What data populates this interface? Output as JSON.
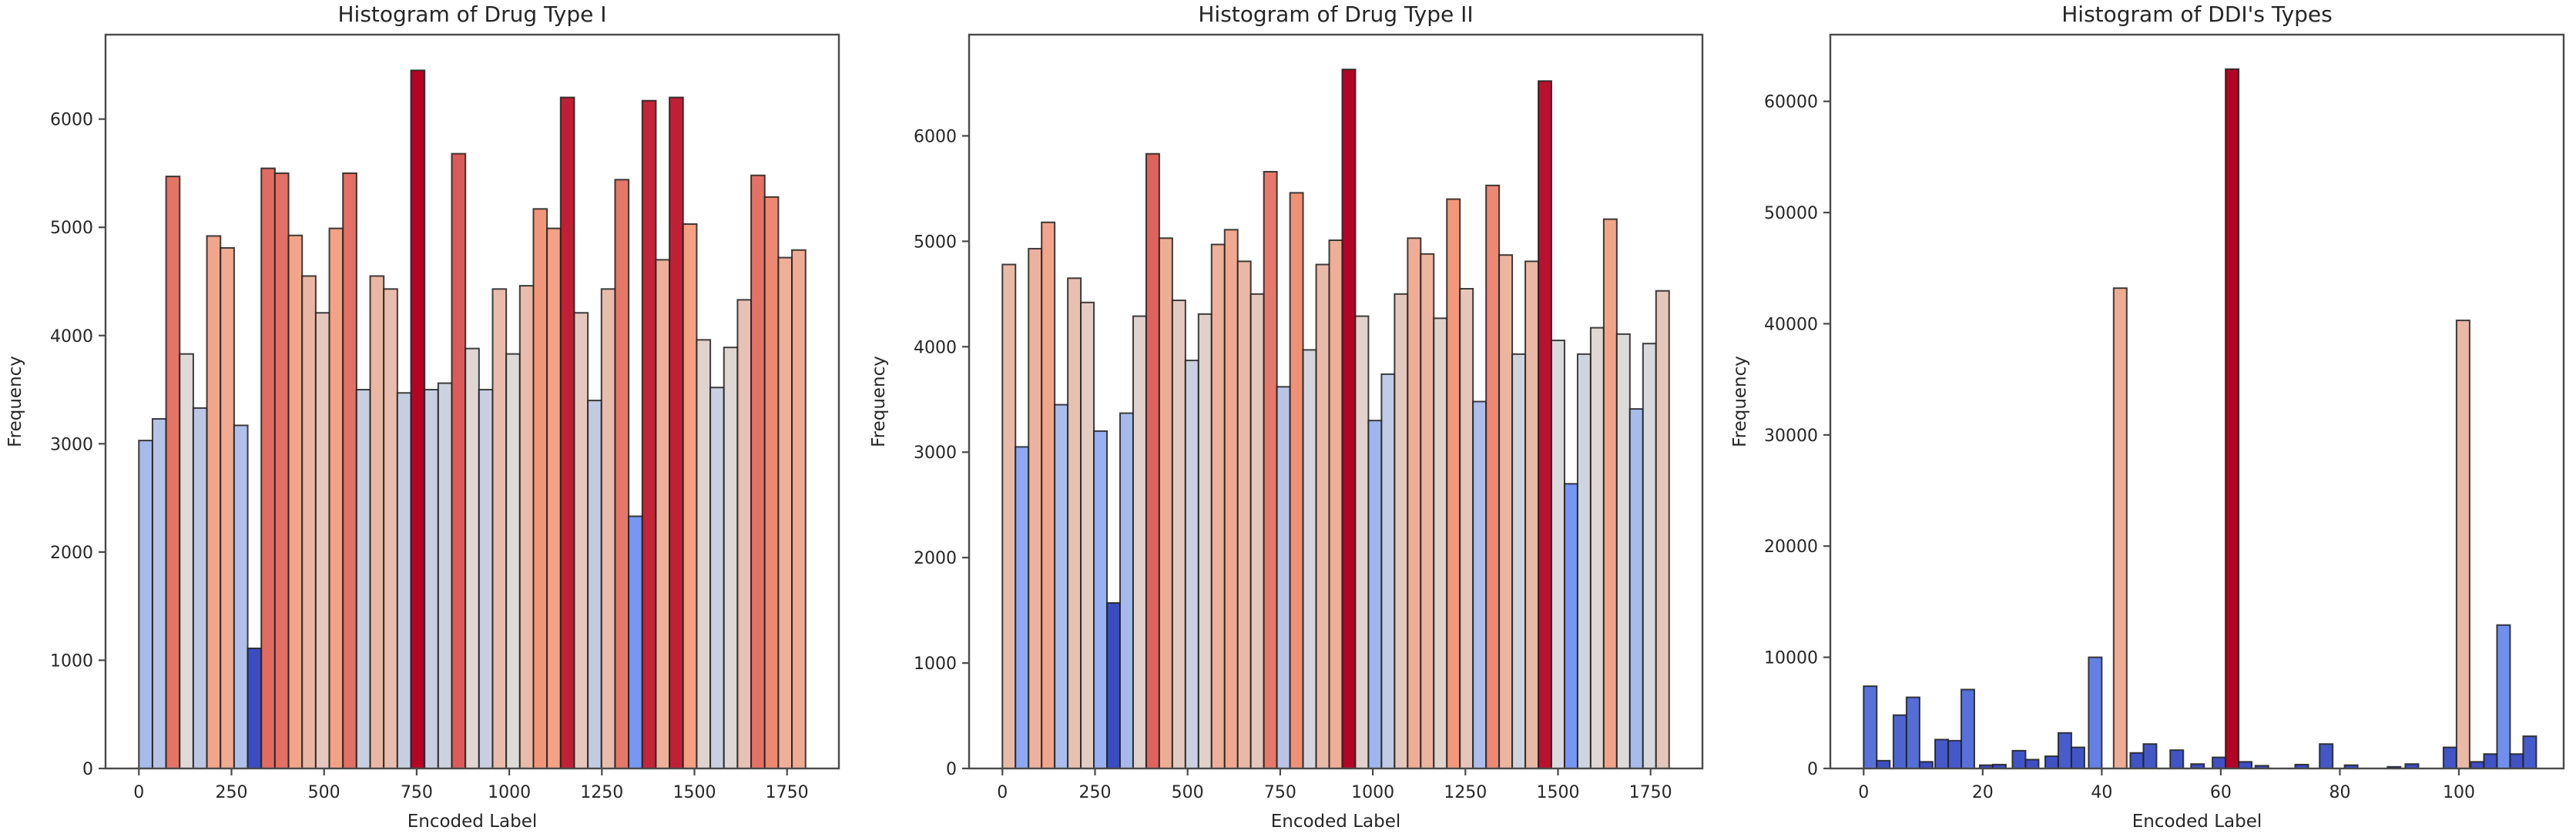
{
  "page": {
    "background": "#ffffff",
    "description": "Three side-by-side matplotlib-style histograms colored with a coolwarm colormap"
  },
  "colormap": {
    "name": "coolwarm",
    "stops": [
      [
        0.0,
        "#3B4CC0"
      ],
      [
        0.25,
        "#7C9FF9"
      ],
      [
        0.5,
        "#DDDCDB"
      ],
      [
        0.75,
        "#F59C7D"
      ],
      [
        1.0,
        "#B40426"
      ]
    ]
  },
  "style": {
    "bar_edge_color": "#1f1f1f",
    "spine_color": "#4a4a4a",
    "text_color": "#262626",
    "plot_background": "#ffffff"
  },
  "chart_data": [
    {
      "type": "bar",
      "subtype": "histogram",
      "title": "Histogram of Drug Type I",
      "xlabel": "Encoded Label",
      "ylabel": "Frequency",
      "xlim": [
        -90,
        1890
      ],
      "ylim": [
        0,
        6780
      ],
      "xticks": [
        0,
        250,
        500,
        750,
        1000,
        1250,
        1500,
        1750
      ],
      "yticks": [
        0,
        1000,
        2000,
        3000,
        4000,
        5000,
        6000
      ],
      "grid": false,
      "legend": null,
      "bins_start": 0,
      "bins_end": 1800,
      "color_by": "value",
      "values": [
        3030,
        3230,
        5470,
        3830,
        3330,
        4920,
        4810,
        3170,
        1110,
        5545,
        5500,
        4925,
        4550,
        4210,
        4990,
        5500,
        3500,
        4550,
        4430,
        3470,
        6450,
        3500,
        3560,
        5680,
        3880,
        3500,
        4430,
        3830,
        4460,
        5170,
        4990,
        6200,
        4210,
        3400,
        4430,
        5440,
        2330,
        6170,
        4700,
        6200,
        5030,
        3960,
        3520,
        3890,
        4330,
        5480,
        5280,
        4720,
        4790
      ]
    },
    {
      "type": "bar",
      "subtype": "histogram",
      "title": "Histogram of Drug Type II",
      "xlabel": "Encoded Label",
      "ylabel": "Frequency",
      "xlim": [
        -90,
        1890
      ],
      "ylim": [
        0,
        6960
      ],
      "xticks": [
        0,
        250,
        500,
        750,
        1000,
        1250,
        1500,
        1750
      ],
      "yticks": [
        0,
        1000,
        2000,
        3000,
        4000,
        5000,
        6000
      ],
      "grid": false,
      "legend": null,
      "bins_start": 0,
      "bins_end": 1800,
      "color_by": "value",
      "values": [
        4780,
        3050,
        4930,
        5180,
        3450,
        4650,
        4420,
        3200,
        1570,
        3370,
        4290,
        5830,
        5030,
        4440,
        3870,
        4310,
        4970,
        5110,
        4810,
        4500,
        5660,
        3620,
        5460,
        3970,
        4780,
        5010,
        6630,
        4290,
        3300,
        3740,
        4500,
        5030,
        4880,
        4270,
        5400,
        4550,
        3480,
        5530,
        4870,
        3930,
        4810,
        6520,
        4060,
        2700,
        3930,
        4180,
        5210,
        4120,
        3410,
        4030,
        4530
      ]
    },
    {
      "type": "bar",
      "subtype": "histogram",
      "title": "Histogram of DDI's Types",
      "xlabel": "Encoded Label",
      "ylabel": "Frequency",
      "xlim": [
        -5.6,
        117.6
      ],
      "ylim": [
        0,
        66000
      ],
      "xticks": [
        0,
        20,
        40,
        60,
        80,
        100
      ],
      "yticks": [
        0,
        10000,
        20000,
        30000,
        40000,
        50000,
        60000
      ],
      "grid": false,
      "legend": null,
      "bar_width": 2.2,
      "color_by": "value",
      "bars": [
        [
          0,
          7400
        ],
        [
          2.2,
          700
        ],
        [
          5,
          4800
        ],
        [
          7.2,
          6400
        ],
        [
          9.4,
          600
        ],
        [
          12,
          2600
        ],
        [
          14.2,
          2500
        ],
        [
          16.4,
          7100
        ],
        [
          19.5,
          300
        ],
        [
          21.7,
          350
        ],
        [
          25,
          1600
        ],
        [
          27.2,
          800
        ],
        [
          30.5,
          1100
        ],
        [
          32.7,
          3200
        ],
        [
          34.9,
          1900
        ],
        [
          37.8,
          10000
        ],
        [
          42,
          43200
        ],
        [
          44.8,
          1400
        ],
        [
          47,
          2200
        ],
        [
          51.5,
          1650
        ],
        [
          55,
          400
        ],
        [
          58.6,
          1000
        ],
        [
          60.8,
          62900
        ],
        [
          63,
          600
        ],
        [
          65.8,
          250
        ],
        [
          72.5,
          350
        ],
        [
          76.6,
          2200
        ],
        [
          80.8,
          300
        ],
        [
          88,
          150
        ],
        [
          91,
          400
        ],
        [
          97.4,
          1900
        ],
        [
          99.6,
          40300
        ],
        [
          102,
          600
        ],
        [
          104.2,
          1300
        ],
        [
          106.4,
          12900
        ],
        [
          108.6,
          1300
        ],
        [
          110.8,
          2900
        ]
      ]
    }
  ]
}
